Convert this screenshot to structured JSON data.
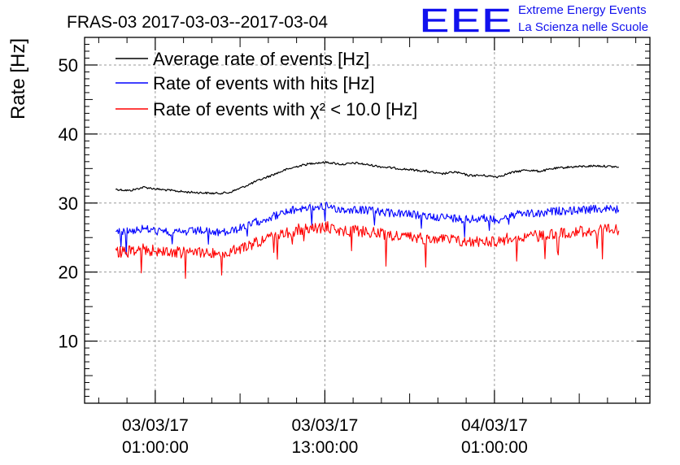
{
  "chart_data": {
    "type": "line",
    "title": "FRAS-03 2017-03-03--2017-03-04",
    "ylabel": "Rate [Hz]",
    "xlabel": "",
    "ylim": [
      1,
      54
    ],
    "xlim": [
      "2017-03-02 20:00:00",
      "2017-03-04 12:00:00"
    ],
    "grid": true,
    "legend_position": "top-left",
    "y_ticks": [
      "10",
      "20",
      "30",
      "40",
      "50"
    ],
    "x_ticks": [
      {
        "at": "2017-03-03 01:00:00",
        "line1": "03/03/17",
        "line2": "01:00:00"
      },
      {
        "at": "2017-03-03 13:00:00",
        "line1": "03/03/17",
        "line2": "13:00:00"
      },
      {
        "at": "2017-03-04 01:00:00",
        "line1": "04/03/17",
        "line2": "01:00:00"
      }
    ],
    "series": [
      {
        "name": "Average rate of events [Hz]",
        "color": "#000000",
        "x": [
          "2017-03-02 22:12:00",
          "2017-03-02 23:12:00",
          "2017-03-03 00:12:00",
          "2017-03-03 01:12:00",
          "2017-03-03 02:12:00",
          "2017-03-03 03:12:00",
          "2017-03-03 04:12:00",
          "2017-03-03 05:12:00",
          "2017-03-03 06:12:00",
          "2017-03-03 07:12:00",
          "2017-03-03 08:12:00",
          "2017-03-03 09:12:00",
          "2017-03-03 10:12:00",
          "2017-03-03 11:12:00",
          "2017-03-03 12:12:00",
          "2017-03-03 13:12:00",
          "2017-03-03 14:12:00",
          "2017-03-03 15:12:00",
          "2017-03-03 16:12:00",
          "2017-03-03 17:12:00",
          "2017-03-03 18:12:00",
          "2017-03-03 19:12:00",
          "2017-03-03 20:12:00",
          "2017-03-03 21:12:00",
          "2017-03-03 22:12:00",
          "2017-03-03 23:12:00",
          "2017-03-04 00:12:00",
          "2017-03-04 01:12:00",
          "2017-03-04 02:12:00",
          "2017-03-04 03:12:00",
          "2017-03-04 04:12:00",
          "2017-03-04 05:12:00",
          "2017-03-04 06:12:00",
          "2017-03-04 07:12:00",
          "2017-03-04 08:12:00",
          "2017-03-04 09:12:00",
          "2017-03-04 09:48:00"
        ],
        "y": [
          32.0,
          31.8,
          32.3,
          32.0,
          31.8,
          31.6,
          31.5,
          31.4,
          31.5,
          32.3,
          33.2,
          34.0,
          34.8,
          35.4,
          35.8,
          35.9,
          35.6,
          35.8,
          35.5,
          35.2,
          35.0,
          34.8,
          34.6,
          34.2,
          34.5,
          34.0,
          34.0,
          33.8,
          34.4,
          34.8,
          34.6,
          35.0,
          35.2,
          35.3,
          35.4,
          35.3,
          35.2
        ]
      },
      {
        "name": "Rate of events with hits [Hz]",
        "color": "#0000ff",
        "x": [
          "2017-03-02 22:12:00",
          "2017-03-02 23:12:00",
          "2017-03-03 00:12:00",
          "2017-03-03 01:12:00",
          "2017-03-03 02:12:00",
          "2017-03-03 03:12:00",
          "2017-03-03 04:12:00",
          "2017-03-03 05:12:00",
          "2017-03-03 06:12:00",
          "2017-03-03 07:12:00",
          "2017-03-03 08:12:00",
          "2017-03-03 09:12:00",
          "2017-03-03 10:12:00",
          "2017-03-03 11:12:00",
          "2017-03-03 12:12:00",
          "2017-03-03 13:12:00",
          "2017-03-03 14:12:00",
          "2017-03-03 15:12:00",
          "2017-03-03 16:12:00",
          "2017-03-03 17:12:00",
          "2017-03-03 18:12:00",
          "2017-03-03 19:12:00",
          "2017-03-03 20:12:00",
          "2017-03-03 21:12:00",
          "2017-03-03 22:12:00",
          "2017-03-03 23:12:00",
          "2017-03-04 00:12:00",
          "2017-03-04 01:12:00",
          "2017-03-04 02:12:00",
          "2017-03-04 03:12:00",
          "2017-03-04 04:12:00",
          "2017-03-04 05:12:00",
          "2017-03-04 06:12:00",
          "2017-03-04 07:12:00",
          "2017-03-04 08:12:00",
          "2017-03-04 09:12:00",
          "2017-03-04 09:48:00"
        ],
        "y": [
          25.8,
          26.0,
          26.3,
          25.9,
          25.7,
          25.8,
          26.0,
          25.7,
          25.8,
          26.5,
          27.3,
          28.0,
          28.6,
          29.2,
          29.4,
          29.6,
          29.0,
          29.1,
          28.9,
          28.6,
          28.5,
          28.3,
          28.1,
          28.0,
          27.8,
          27.6,
          27.8,
          27.6,
          28.2,
          28.5,
          28.4,
          28.8,
          28.9,
          29.0,
          29.1,
          29.2,
          29.0
        ]
      },
      {
        "name": "Rate of events with χ² < 10.0 [Hz]",
        "color": "#ff0000",
        "x": [
          "2017-03-02 22:12:00",
          "2017-03-02 23:12:00",
          "2017-03-03 00:12:00",
          "2017-03-03 01:12:00",
          "2017-03-03 02:12:00",
          "2017-03-03 03:12:00",
          "2017-03-03 04:12:00",
          "2017-03-03 05:12:00",
          "2017-03-03 06:12:00",
          "2017-03-03 07:12:00",
          "2017-03-03 08:12:00",
          "2017-03-03 09:12:00",
          "2017-03-03 10:12:00",
          "2017-03-03 11:12:00",
          "2017-03-03 12:12:00",
          "2017-03-03 13:12:00",
          "2017-03-03 14:12:00",
          "2017-03-03 15:12:00",
          "2017-03-03 16:12:00",
          "2017-03-03 17:12:00",
          "2017-03-03 18:12:00",
          "2017-03-03 19:12:00",
          "2017-03-03 20:12:00",
          "2017-03-03 21:12:00",
          "2017-03-03 22:12:00",
          "2017-03-03 23:12:00",
          "2017-03-04 00:12:00",
          "2017-03-04 01:12:00",
          "2017-03-04 02:12:00",
          "2017-03-04 03:12:00",
          "2017-03-04 04:12:00",
          "2017-03-04 05:12:00",
          "2017-03-04 06:12:00",
          "2017-03-04 07:12:00",
          "2017-03-04 08:12:00",
          "2017-03-04 09:12:00",
          "2017-03-04 09:48:00"
        ],
        "y": [
          22.8,
          23.0,
          23.3,
          23.0,
          22.9,
          22.8,
          23.0,
          22.7,
          22.8,
          23.5,
          24.4,
          25.0,
          25.6,
          26.2,
          26.3,
          26.5,
          25.9,
          26.0,
          25.8,
          25.4,
          25.2,
          25.0,
          24.9,
          24.8,
          24.6,
          24.3,
          24.6,
          24.4,
          25.0,
          25.3,
          25.2,
          25.6,
          25.8,
          25.9,
          26.0,
          26.1,
          26.0
        ]
      }
    ]
  },
  "logo": {
    "letters": "EEE",
    "line1": "Extreme Energy Events",
    "line2": "La Scienza nelle Scuole",
    "color": "#1111ee"
  }
}
